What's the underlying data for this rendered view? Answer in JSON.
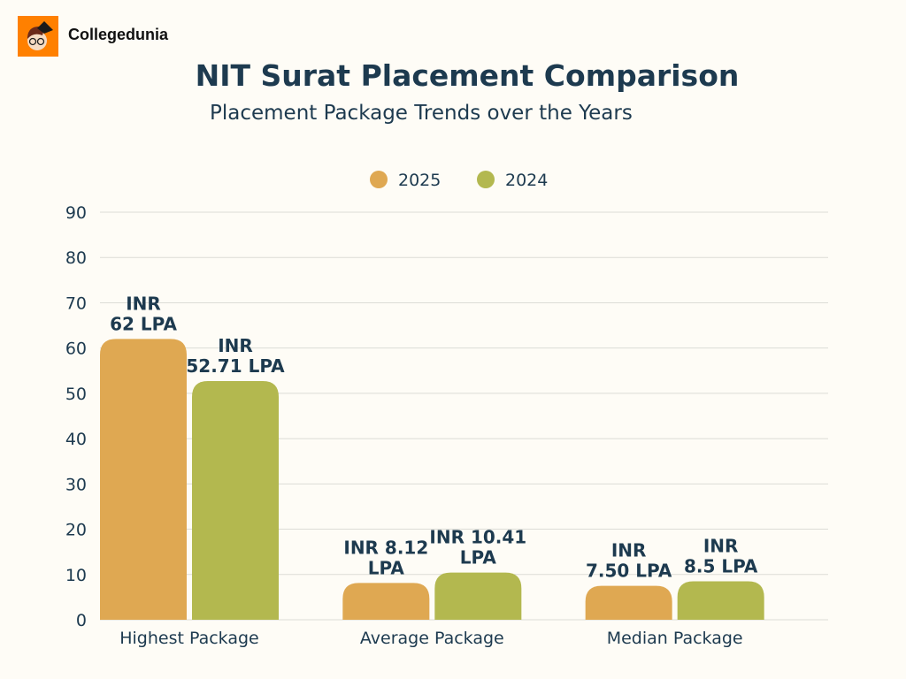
{
  "brand": {
    "name": "Collegedunia"
  },
  "chart_data": {
    "type": "bar",
    "title": "NIT Surat Placement Comparison",
    "subtitle": "Placement Package Trends over the Years",
    "categories": [
      "Highest Package",
      "Average Package",
      "Median Package"
    ],
    "series": [
      {
        "name": "2025",
        "color": "#dfa852",
        "values": [
          62,
          8.12,
          7.5
        ],
        "labels": [
          [
            "INR",
            "62 LPA"
          ],
          [
            "INR 8.12",
            "LPA"
          ],
          [
            "INR",
            "7.50 LPA"
          ]
        ]
      },
      {
        "name": "2024",
        "color": "#b3b84f",
        "values": [
          52.71,
          10.41,
          8.5
        ],
        "labels": [
          [
            "INR",
            "52.71 LPA"
          ],
          [
            "INR 10.41",
            "LPA"
          ],
          [
            "INR",
            "8.5 LPA"
          ]
        ]
      }
    ],
    "yticks": [
      0,
      10,
      20,
      30,
      40,
      50,
      60,
      70,
      80,
      90
    ],
    "ylim": [
      0,
      90
    ],
    "grid": true,
    "legend": "top-center"
  }
}
